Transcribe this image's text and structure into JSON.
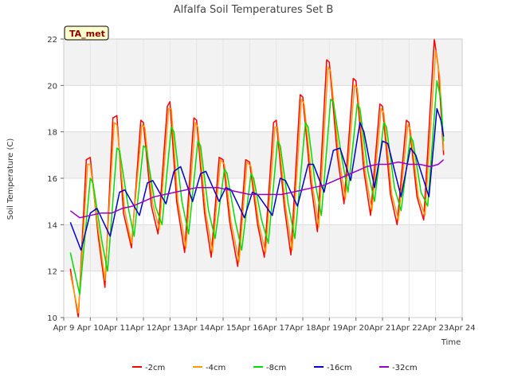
{
  "chart_data": {
    "type": "line",
    "title": "Alfalfa Soil Temperatures Set B",
    "xlabel": "Time",
    "ylabel": "Soil Temperature (C)",
    "station_label": "TA_met",
    "xlim": [
      0,
      15
    ],
    "ylim": [
      10,
      22
    ],
    "x_ticks": [
      {
        "x": 0,
        "label": "Apr 9"
      },
      {
        "x": 1,
        "label": "Apr 10"
      },
      {
        "x": 2,
        "label": "Apr 11"
      },
      {
        "x": 3,
        "label": "Apr 12"
      },
      {
        "x": 4,
        "label": "Apr 13"
      },
      {
        "x": 5,
        "label": "Apr 14"
      },
      {
        "x": 6,
        "label": "Apr 15"
      },
      {
        "x": 7,
        "label": "Apr 16"
      },
      {
        "x": 8,
        "label": "Apr 17"
      },
      {
        "x": 9,
        "label": "Apr 18"
      },
      {
        "x": 10,
        "label": "Apr 19"
      },
      {
        "x": 11,
        "label": "Apr 20"
      },
      {
        "x": 12,
        "label": "Apr 21"
      },
      {
        "x": 13,
        "label": "Apr 22"
      },
      {
        "x": 14,
        "label": "Apr 23"
      },
      {
        "x": 15,
        "label": "Apr 24"
      }
    ],
    "y_ticks": [
      {
        "y": 10,
        "label": "10"
      },
      {
        "y": 12,
        "label": "12"
      },
      {
        "y": 14,
        "label": "14"
      },
      {
        "y": 16,
        "label": "16"
      },
      {
        "y": 18,
        "label": "18"
      },
      {
        "y": 20,
        "label": "20"
      },
      {
        "y": 22,
        "label": "22"
      }
    ],
    "grid": true,
    "legend_position": "bottom",
    "series": [
      {
        "name": "-2cm",
        "color": "#ff0000",
        "points": [
          [
            0.25,
            12.1
          ],
          [
            0.55,
            10.0
          ],
          [
            0.85,
            16.8
          ],
          [
            1.0,
            16.9
          ],
          [
            1.3,
            13.5
          ],
          [
            1.55,
            11.3
          ],
          [
            1.85,
            18.6
          ],
          [
            2.0,
            18.7
          ],
          [
            2.25,
            14.5
          ],
          [
            2.55,
            13.0
          ],
          [
            2.9,
            18.5
          ],
          [
            3.0,
            18.4
          ],
          [
            3.3,
            14.8
          ],
          [
            3.55,
            13.6
          ],
          [
            3.9,
            19.1
          ],
          [
            4.0,
            19.3
          ],
          [
            4.25,
            15.0
          ],
          [
            4.55,
            12.8
          ],
          [
            4.9,
            18.6
          ],
          [
            5.0,
            18.5
          ],
          [
            5.3,
            14.5
          ],
          [
            5.55,
            12.6
          ],
          [
            5.85,
            16.9
          ],
          [
            6.0,
            16.8
          ],
          [
            6.25,
            14.1
          ],
          [
            6.55,
            12.2
          ],
          [
            6.85,
            16.8
          ],
          [
            7.0,
            16.7
          ],
          [
            7.3,
            14.0
          ],
          [
            7.55,
            12.6
          ],
          [
            7.9,
            18.4
          ],
          [
            8.0,
            18.5
          ],
          [
            8.3,
            14.8
          ],
          [
            8.55,
            12.7
          ],
          [
            8.9,
            19.6
          ],
          [
            9.0,
            19.5
          ],
          [
            9.3,
            15.8
          ],
          [
            9.55,
            13.7
          ],
          [
            9.9,
            21.1
          ],
          [
            10.0,
            21.0
          ],
          [
            10.3,
            17.0
          ],
          [
            10.55,
            14.9
          ],
          [
            10.9,
            20.3
          ],
          [
            11.0,
            20.2
          ],
          [
            11.3,
            16.3
          ],
          [
            11.55,
            14.4
          ],
          [
            11.9,
            19.2
          ],
          [
            12.0,
            19.1
          ],
          [
            12.3,
            15.3
          ],
          [
            12.55,
            14.0
          ],
          [
            12.9,
            18.5
          ],
          [
            13.0,
            18.4
          ],
          [
            13.3,
            15.2
          ],
          [
            13.55,
            14.2
          ],
          [
            13.95,
            22.0
          ],
          [
            14.1,
            20.8
          ],
          [
            14.3,
            17.0
          ]
        ]
      },
      {
        "name": "-4cm",
        "color": "#ff9900",
        "points": [
          [
            0.25,
            11.9
          ],
          [
            0.55,
            10.2
          ],
          [
            0.9,
            16.6
          ],
          [
            1.0,
            16.6
          ],
          [
            1.3,
            13.8
          ],
          [
            1.55,
            11.6
          ],
          [
            1.9,
            18.4
          ],
          [
            2.0,
            18.3
          ],
          [
            2.3,
            14.6
          ],
          [
            2.55,
            13.2
          ],
          [
            2.95,
            18.3
          ],
          [
            3.05,
            18.2
          ],
          [
            3.35,
            14.9
          ],
          [
            3.6,
            13.8
          ],
          [
            3.95,
            19.0
          ],
          [
            4.05,
            19.0
          ],
          [
            4.3,
            15.0
          ],
          [
            4.6,
            13.0
          ],
          [
            4.95,
            18.4
          ],
          [
            5.05,
            18.2
          ],
          [
            5.35,
            14.5
          ],
          [
            5.6,
            12.8
          ],
          [
            5.9,
            16.8
          ],
          [
            6.05,
            16.6
          ],
          [
            6.3,
            14.1
          ],
          [
            6.6,
            12.4
          ],
          [
            6.9,
            16.7
          ],
          [
            7.05,
            16.5
          ],
          [
            7.35,
            14.0
          ],
          [
            7.6,
            12.8
          ],
          [
            7.95,
            18.2
          ],
          [
            8.05,
            18.2
          ],
          [
            8.35,
            14.8
          ],
          [
            8.6,
            12.9
          ],
          [
            8.95,
            19.4
          ],
          [
            9.05,
            19.2
          ],
          [
            9.35,
            15.8
          ],
          [
            9.6,
            13.9
          ],
          [
            9.95,
            20.8
          ],
          [
            10.05,
            20.6
          ],
          [
            10.35,
            17.0
          ],
          [
            10.6,
            15.1
          ],
          [
            10.95,
            20.0
          ],
          [
            11.05,
            19.9
          ],
          [
            11.35,
            16.3
          ],
          [
            11.6,
            14.6
          ],
          [
            11.95,
            19.0
          ],
          [
            12.05,
            18.8
          ],
          [
            12.35,
            15.3
          ],
          [
            12.6,
            14.2
          ],
          [
            12.95,
            18.3
          ],
          [
            13.05,
            18.1
          ],
          [
            13.35,
            15.2
          ],
          [
            13.6,
            14.4
          ],
          [
            14.0,
            21.5
          ],
          [
            14.15,
            20.4
          ],
          [
            14.3,
            17.2
          ]
        ]
      },
      {
        "name": "-8cm",
        "color": "#00dd00",
        "points": [
          [
            0.25,
            12.8
          ],
          [
            0.6,
            11.0
          ],
          [
            1.0,
            16.0
          ],
          [
            1.1,
            15.8
          ],
          [
            1.45,
            13.2
          ],
          [
            1.65,
            12.0
          ],
          [
            2.0,
            17.3
          ],
          [
            2.1,
            17.2
          ],
          [
            2.45,
            14.6
          ],
          [
            2.65,
            13.5
          ],
          [
            3.0,
            17.4
          ],
          [
            3.1,
            17.3
          ],
          [
            3.45,
            14.8
          ],
          [
            3.7,
            14.0
          ],
          [
            4.05,
            18.2
          ],
          [
            4.15,
            18.0
          ],
          [
            4.45,
            15.0
          ],
          [
            4.7,
            13.6
          ],
          [
            5.05,
            17.6
          ],
          [
            5.15,
            17.4
          ],
          [
            5.45,
            14.6
          ],
          [
            5.7,
            13.4
          ],
          [
            6.05,
            16.4
          ],
          [
            6.15,
            16.2
          ],
          [
            6.45,
            14.2
          ],
          [
            6.7,
            12.9
          ],
          [
            7.05,
            16.2
          ],
          [
            7.15,
            16.0
          ],
          [
            7.45,
            14.2
          ],
          [
            7.7,
            13.2
          ],
          [
            8.05,
            17.6
          ],
          [
            8.15,
            17.4
          ],
          [
            8.45,
            14.9
          ],
          [
            8.7,
            13.4
          ],
          [
            9.1,
            18.4
          ],
          [
            9.2,
            18.2
          ],
          [
            9.45,
            15.9
          ],
          [
            9.7,
            14.4
          ],
          [
            10.05,
            19.4
          ],
          [
            10.15,
            19.3
          ],
          [
            10.45,
            17.0
          ],
          [
            10.7,
            15.4
          ],
          [
            11.05,
            19.2
          ],
          [
            11.15,
            19.0
          ],
          [
            11.45,
            16.3
          ],
          [
            11.7,
            15.0
          ],
          [
            12.05,
            18.4
          ],
          [
            12.15,
            18.2
          ],
          [
            12.45,
            15.6
          ],
          [
            12.7,
            14.6
          ],
          [
            13.05,
            17.8
          ],
          [
            13.15,
            17.6
          ],
          [
            13.45,
            15.4
          ],
          [
            13.7,
            14.8
          ],
          [
            14.05,
            20.2
          ],
          [
            14.2,
            19.4
          ],
          [
            14.3,
            17.6
          ]
        ]
      },
      {
        "name": "-16cm",
        "color": "#0000cc",
        "points": [
          [
            0.25,
            14.1
          ],
          [
            0.65,
            12.9
          ],
          [
            1.0,
            14.5
          ],
          [
            1.25,
            14.7
          ],
          [
            1.75,
            13.5
          ],
          [
            2.1,
            15.4
          ],
          [
            2.3,
            15.5
          ],
          [
            2.85,
            14.4
          ],
          [
            3.15,
            15.8
          ],
          [
            3.35,
            15.9
          ],
          [
            3.85,
            14.9
          ],
          [
            4.15,
            16.3
          ],
          [
            4.4,
            16.5
          ],
          [
            4.85,
            15.0
          ],
          [
            5.15,
            16.2
          ],
          [
            5.35,
            16.3
          ],
          [
            5.85,
            15.0
          ],
          [
            6.1,
            15.6
          ],
          [
            6.3,
            15.5
          ],
          [
            6.8,
            14.3
          ],
          [
            7.1,
            15.4
          ],
          [
            7.3,
            15.3
          ],
          [
            7.85,
            14.4
          ],
          [
            8.15,
            16.0
          ],
          [
            8.35,
            15.9
          ],
          [
            8.8,
            14.8
          ],
          [
            9.2,
            16.6
          ],
          [
            9.4,
            16.6
          ],
          [
            9.8,
            15.4
          ],
          [
            10.15,
            17.2
          ],
          [
            10.4,
            17.3
          ],
          [
            10.8,
            15.9
          ],
          [
            11.15,
            18.4
          ],
          [
            11.3,
            18.0
          ],
          [
            11.7,
            15.6
          ],
          [
            12.0,
            17.6
          ],
          [
            12.2,
            17.5
          ],
          [
            12.7,
            15.2
          ],
          [
            13.05,
            17.3
          ],
          [
            13.25,
            17.0
          ],
          [
            13.75,
            15.2
          ],
          [
            14.05,
            19.0
          ],
          [
            14.2,
            18.5
          ],
          [
            14.3,
            17.8
          ]
        ]
      },
      {
        "name": "-32cm",
        "color": "#9900cc",
        "points": [
          [
            0.25,
            14.6
          ],
          [
            0.6,
            14.3
          ],
          [
            1.0,
            14.4
          ],
          [
            1.4,
            14.5
          ],
          [
            1.8,
            14.5
          ],
          [
            2.2,
            14.7
          ],
          [
            2.6,
            14.8
          ],
          [
            3.0,
            15.0
          ],
          [
            3.4,
            15.2
          ],
          [
            3.8,
            15.3
          ],
          [
            4.2,
            15.4
          ],
          [
            4.6,
            15.5
          ],
          [
            5.0,
            15.6
          ],
          [
            5.4,
            15.6
          ],
          [
            5.8,
            15.6
          ],
          [
            6.2,
            15.5
          ],
          [
            6.6,
            15.4
          ],
          [
            7.0,
            15.3
          ],
          [
            7.4,
            15.3
          ],
          [
            7.8,
            15.3
          ],
          [
            8.2,
            15.3
          ],
          [
            8.6,
            15.4
          ],
          [
            9.0,
            15.5
          ],
          [
            9.4,
            15.6
          ],
          [
            9.8,
            15.7
          ],
          [
            10.2,
            15.9
          ],
          [
            10.6,
            16.1
          ],
          [
            11.0,
            16.3
          ],
          [
            11.4,
            16.5
          ],
          [
            11.8,
            16.6
          ],
          [
            12.2,
            16.6
          ],
          [
            12.6,
            16.7
          ],
          [
            13.0,
            16.6
          ],
          [
            13.4,
            16.6
          ],
          [
            13.8,
            16.5
          ],
          [
            14.1,
            16.6
          ],
          [
            14.3,
            16.8
          ]
        ]
      }
    ]
  }
}
